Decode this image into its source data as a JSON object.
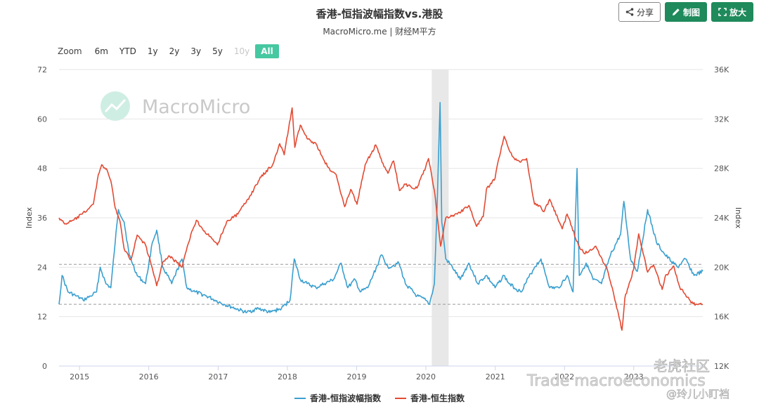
{
  "header": {
    "title": "香港-恒指波幅指数vs.港股",
    "subtitle": "MacroMicro.me | 财经M平方"
  },
  "toolbar": {
    "share_label": "分享",
    "chart_label": "制图",
    "enlarge_label": "放大"
  },
  "zoom": {
    "label": "Zoom",
    "options": [
      {
        "label": "6m",
        "state": "normal"
      },
      {
        "label": "YTD",
        "state": "normal"
      },
      {
        "label": "1y",
        "state": "normal"
      },
      {
        "label": "2y",
        "state": "normal"
      },
      {
        "label": "3y",
        "state": "normal"
      },
      {
        "label": "5y",
        "state": "normal"
      },
      {
        "label": "10y",
        "state": "disabled"
      },
      {
        "label": "All",
        "state": "active"
      }
    ]
  },
  "watermarks": {
    "brand": "MacroMicro",
    "bottom_line": "Trade macroeconomics",
    "community": "老虎社区",
    "user": "@玲儿小盯裆"
  },
  "chart_data": {
    "type": "line",
    "x_axis": {
      "type": "datetime",
      "range": [
        "2014-09-15",
        "2023-12-31"
      ],
      "tick_labels": [
        "2015",
        "2016",
        "2017",
        "2018",
        "2019",
        "2020",
        "2021",
        "2022",
        "2023"
      ]
    },
    "y_left": {
      "label": "Index",
      "range": [
        0,
        72
      ],
      "ticks": [
        0,
        12,
        24,
        36,
        48,
        60,
        72
      ]
    },
    "y_right": {
      "label": "Index",
      "range": [
        12000,
        36000
      ],
      "ticks": [
        "12K",
        "16K",
        "20K",
        "24K",
        "28K",
        "32K",
        "36K"
      ]
    },
    "reference_lines": [
      {
        "axis": "left",
        "value": 24.7,
        "style": "dashed"
      },
      {
        "axis": "left",
        "value": 15.0,
        "style": "dashed"
      }
    ],
    "shaded_band": {
      "from": "2020-02-01",
      "to": "2020-04-30",
      "color": "#e8e8e8"
    },
    "legend_position": "bottom-center",
    "grid": true,
    "series": [
      {
        "name": "香港-恒指波幅指数",
        "axis": "left",
        "color": "#3a9fcf",
        "x": [
          "2014-09-15",
          "2014-10-01",
          "2014-11-01",
          "2014-12-15",
          "2015-01-20",
          "2015-03-01",
          "2015-04-01",
          "2015-04-20",
          "2015-05-20",
          "2015-06-15",
          "2015-07-08",
          "2015-07-25",
          "2015-08-24",
          "2015-09-20",
          "2015-11-01",
          "2015-12-15",
          "2016-01-20",
          "2016-02-12",
          "2016-03-15",
          "2016-05-01",
          "2016-06-24",
          "2016-07-20",
          "2016-09-01",
          "2016-11-01",
          "2016-12-15",
          "2017-02-01",
          "2017-04-01",
          "2017-06-01",
          "2017-08-01",
          "2017-10-01",
          "2017-12-01",
          "2018-01-15",
          "2018-02-06",
          "2018-03-10",
          "2018-04-15",
          "2018-06-01",
          "2018-07-15",
          "2018-09-01",
          "2018-10-11",
          "2018-11-15",
          "2018-12-24",
          "2019-01-20",
          "2019-03-01",
          "2019-05-13",
          "2019-06-15",
          "2019-08-12",
          "2019-09-15",
          "2019-11-15",
          "2019-12-31",
          "2020-01-20",
          "2020-02-15",
          "2020-03-01",
          "2020-03-16",
          "2020-03-25",
          "2020-04-15",
          "2020-05-20",
          "2020-06-30",
          "2020-08-15",
          "2020-10-01",
          "2020-11-15",
          "2020-12-31",
          "2021-02-15",
          "2021-03-15",
          "2021-05-15",
          "2021-07-27",
          "2021-08-30",
          "2021-10-15",
          "2021-12-01",
          "2022-01-15",
          "2022-02-15",
          "2022-03-08",
          "2022-03-20",
          "2022-04-25",
          "2022-06-01",
          "2022-07-15",
          "2022-09-01",
          "2022-10-24",
          "2022-11-10",
          "2022-12-15",
          "2023-01-20",
          "2023-03-15",
          "2023-05-01",
          "2023-06-15",
          "2023-08-20",
          "2023-10-01",
          "2023-11-15",
          "2023-12-31"
        ],
        "y": [
          15,
          22,
          18,
          17,
          16,
          17,
          18,
          24,
          20,
          19,
          30,
          38,
          35,
          27,
          22,
          20,
          30,
          33,
          24,
          20,
          26,
          19,
          18,
          17,
          16,
          15,
          14,
          13,
          14,
          13,
          14,
          16,
          26,
          21,
          20,
          19,
          20,
          21,
          25,
          19,
          21,
          18,
          19,
          27,
          24,
          25,
          20,
          17,
          16,
          15,
          20,
          40,
          64,
          35,
          26,
          24,
          21,
          25,
          20,
          22,
          19,
          22,
          20,
          18,
          24,
          26,
          19,
          19,
          22,
          18,
          48,
          22,
          25,
          21,
          20,
          27,
          32,
          40,
          26,
          23,
          38,
          30,
          27,
          24,
          26,
          22,
          23
        ]
      },
      {
        "name": "香港-恒生指数",
        "axis": "right",
        "color": "#e24a33",
        "x": [
          "2014-09-15",
          "2014-10-15",
          "2014-12-01",
          "2015-01-15",
          "2015-02-15",
          "2015-03-15",
          "2015-04-10",
          "2015-04-28",
          "2015-05-28",
          "2015-06-15",
          "2015-07-08",
          "2015-08-01",
          "2015-08-24",
          "2015-09-29",
          "2015-11-01",
          "2015-12-15",
          "2016-01-20",
          "2016-02-12",
          "2016-03-15",
          "2016-04-20",
          "2016-06-24",
          "2016-08-15",
          "2016-09-08",
          "2016-10-01",
          "2016-11-15",
          "2016-12-28",
          "2017-02-15",
          "2017-04-15",
          "2017-06-15",
          "2017-08-15",
          "2017-10-15",
          "2017-11-22",
          "2017-12-15",
          "2018-01-26",
          "2018-02-09",
          "2018-03-10",
          "2018-04-15",
          "2018-06-01",
          "2018-07-15",
          "2018-08-15",
          "2018-09-15",
          "2018-10-30",
          "2018-12-01",
          "2019-01-03",
          "2019-02-15",
          "2019-04-12",
          "2019-05-15",
          "2019-06-15",
          "2019-07-15",
          "2019-08-15",
          "2019-09-15",
          "2019-10-15",
          "2019-11-15",
          "2019-12-31",
          "2020-01-15",
          "2020-02-15",
          "2020-03-19",
          "2020-04-15",
          "2020-06-15",
          "2020-08-15",
          "2020-09-25",
          "2020-10-30",
          "2020-11-15",
          "2020-12-31",
          "2021-01-15",
          "2021-02-17",
          "2021-03-15",
          "2021-04-15",
          "2021-05-15",
          "2021-06-15",
          "2021-07-27",
          "2021-08-20",
          "2021-09-15",
          "2021-10-15",
          "2021-12-20",
          "2022-01-15",
          "2022-03-15",
          "2022-04-15",
          "2022-06-15",
          "2022-08-15",
          "2022-09-15",
          "2022-10-31",
          "2022-11-15",
          "2022-12-31",
          "2023-01-27",
          "2023-03-15",
          "2023-04-15",
          "2023-05-31",
          "2023-06-15",
          "2023-07-31",
          "2023-08-31",
          "2023-09-30",
          "2023-10-31",
          "2023-11-30",
          "2023-12-31"
        ],
        "y": [
          24000,
          23500,
          23800,
          24300,
          24700,
          25100,
          27500,
          28300,
          27800,
          27000,
          24800,
          23800,
          21500,
          20600,
          22600,
          21800,
          19900,
          18500,
          20400,
          20900,
          20000,
          22900,
          23800,
          23300,
          22500,
          21800,
          23700,
          24300,
          25700,
          27300,
          28300,
          30000,
          29100,
          32900,
          29700,
          31500,
          30400,
          30000,
          28600,
          27800,
          27500,
          24900,
          26300,
          25100,
          28300,
          29900,
          28500,
          27600,
          28600,
          26200,
          26700,
          26500,
          26400,
          28100,
          28800,
          26200,
          21700,
          24000,
          24300,
          25000,
          23300,
          24100,
          26300,
          27200,
          28500,
          30600,
          29500,
          28700,
          28500,
          28800,
          25100,
          25000,
          24500,
          25500,
          23100,
          24300,
          21800,
          21100,
          21700,
          19800,
          18000,
          14900,
          17500,
          19800,
          22700,
          19600,
          20200,
          18200,
          19200,
          20100,
          18400,
          17800,
          17100,
          17000,
          17000
        ]
      }
    ]
  }
}
